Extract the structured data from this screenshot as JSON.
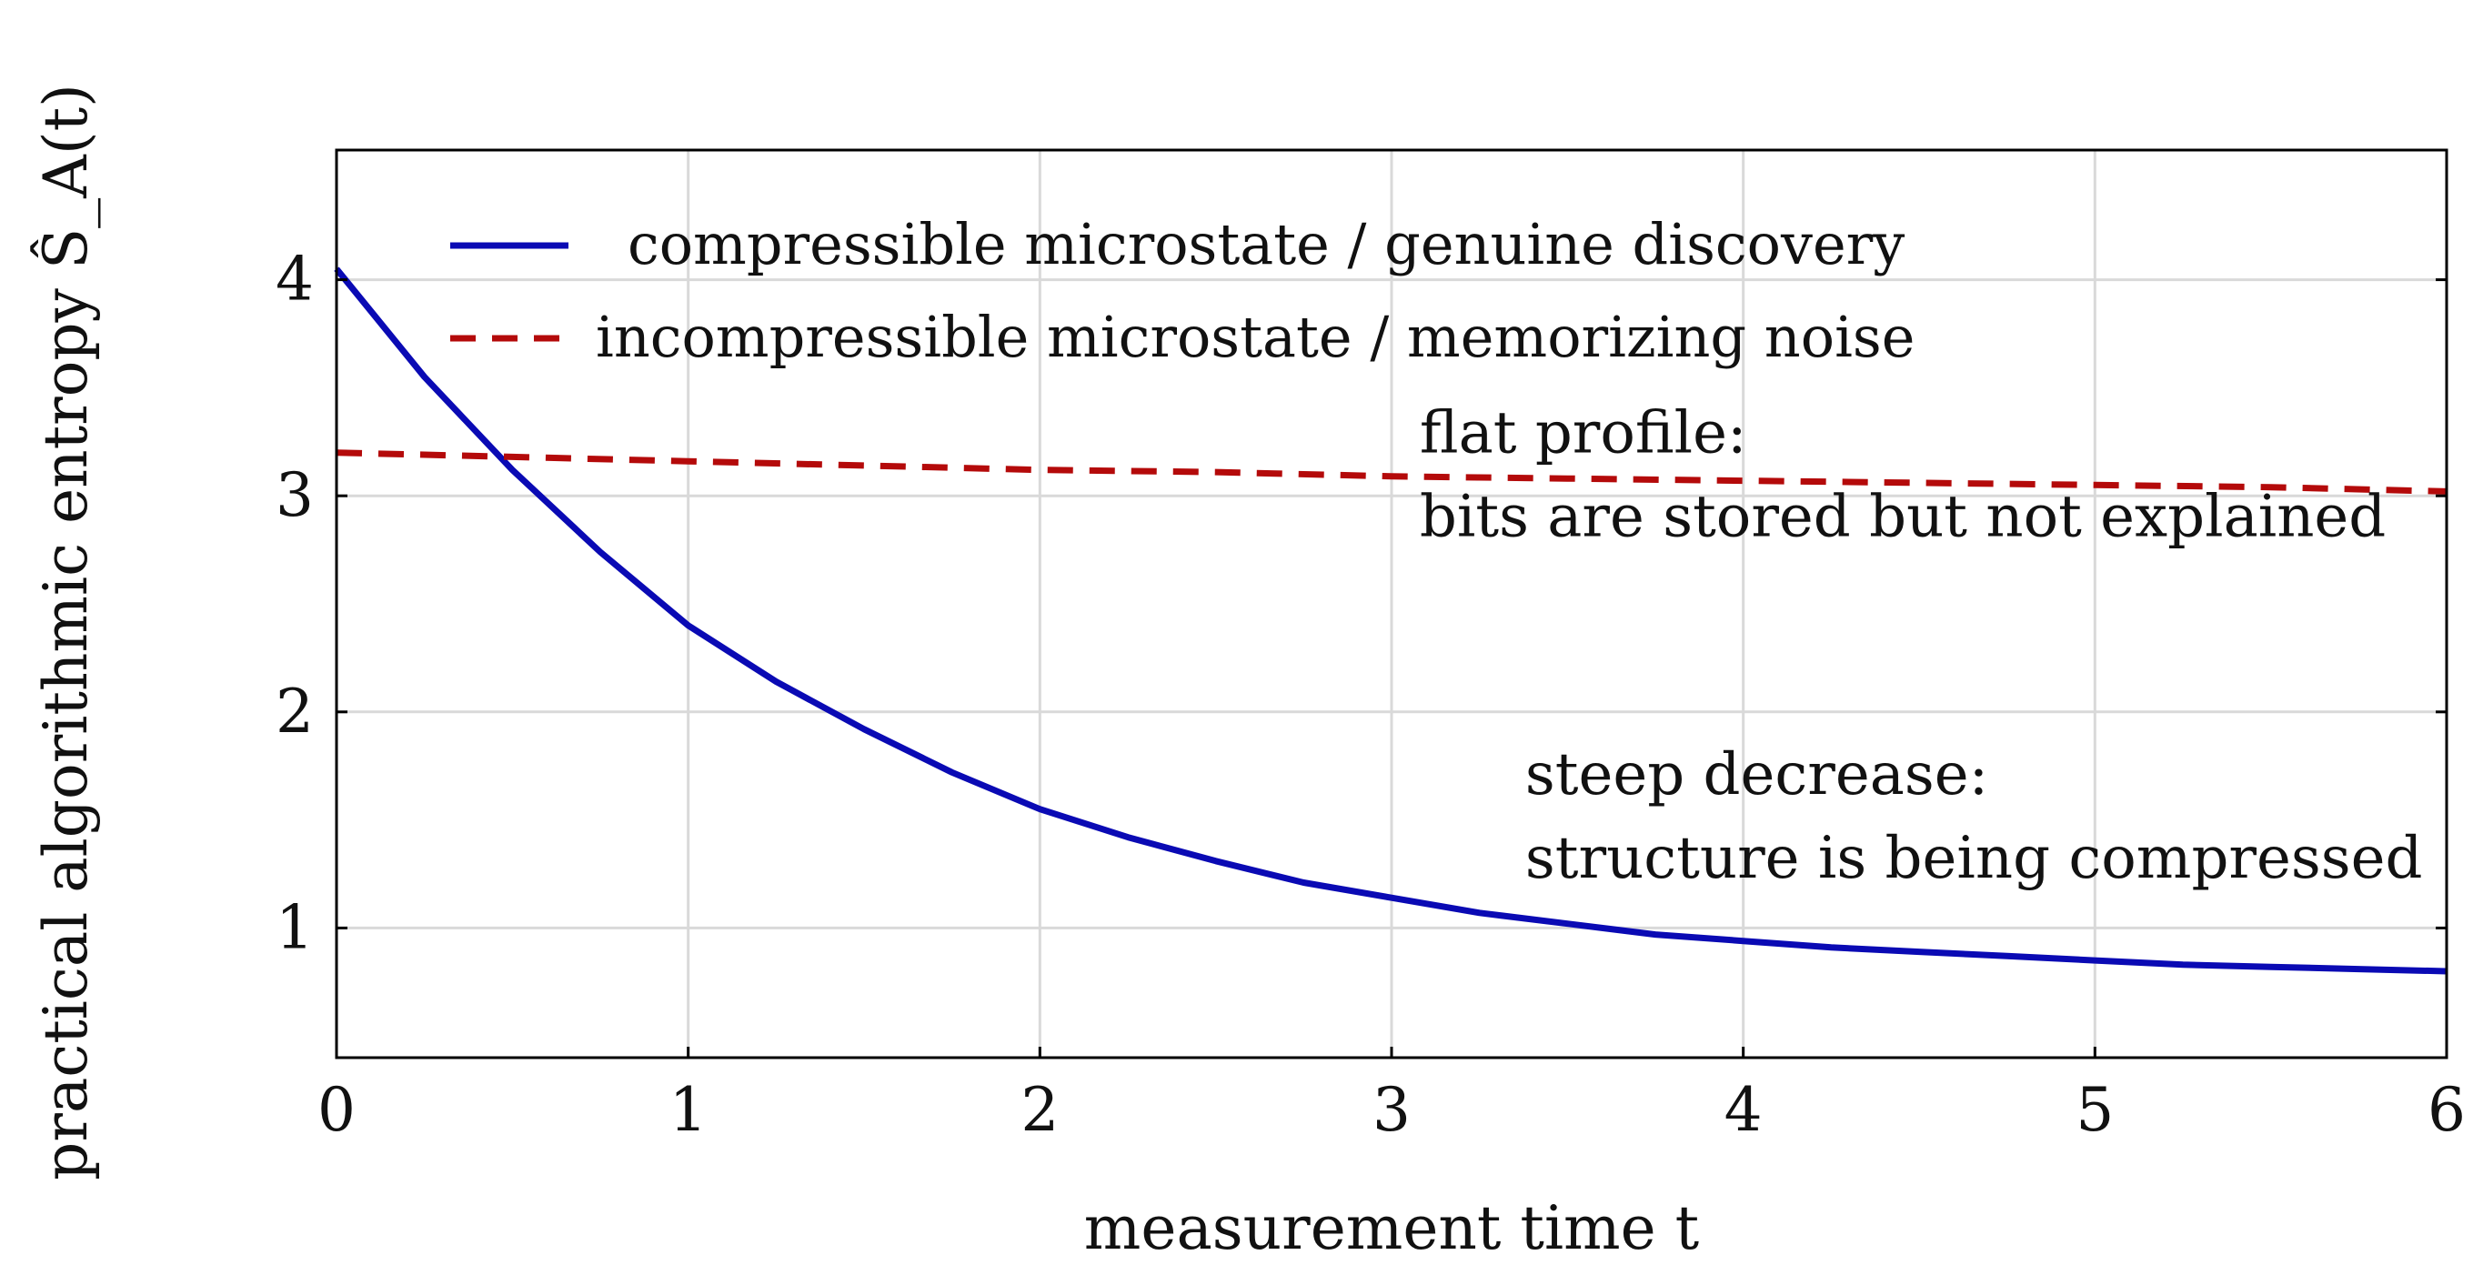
{
  "chart_data": {
    "type": "line",
    "xlabel": "measurement time t",
    "ylabel": "practical algorithmic entropy Ŝ_A(t)",
    "xlim": [
      0,
      6
    ],
    "ylim": [
      0.4,
      4.6
    ],
    "x_ticks": [
      "0",
      "1",
      "2",
      "3",
      "4",
      "5",
      "6"
    ],
    "y_ticks": [
      "1",
      "2",
      "3",
      "4"
    ],
    "grid": true,
    "legend_position": "top-left",
    "series": [
      {
        "name": "compressible microstate / genuine discovery",
        "style": "solid",
        "color": "#0a0ab4",
        "x": [
          0,
          0.25,
          0.5,
          0.75,
          1.0,
          1.25,
          1.5,
          1.75,
          2.0,
          2.25,
          2.5,
          2.75,
          3.0,
          3.25,
          3.5,
          3.75,
          4.0,
          4.25,
          4.5,
          4.75,
          5.0,
          5.25,
          5.5,
          5.75,
          6.0
        ],
        "y": [
          4.05,
          3.55,
          3.12,
          2.74,
          2.4,
          2.14,
          1.92,
          1.72,
          1.55,
          1.42,
          1.31,
          1.21,
          1.14,
          1.07,
          1.02,
          0.97,
          0.94,
          0.91,
          0.89,
          0.87,
          0.85,
          0.83,
          0.82,
          0.81,
          0.8
        ]
      },
      {
        "name": "incompressible microstate / memorizing noise",
        "style": "dashed",
        "color": "#b40a0a",
        "x": [
          0,
          0.5,
          1.0,
          1.5,
          2.0,
          2.5,
          3.0,
          3.5,
          4.0,
          4.5,
          5.0,
          5.5,
          6.0
        ],
        "y": [
          3.2,
          3.18,
          3.16,
          3.14,
          3.12,
          3.11,
          3.09,
          3.08,
          3.07,
          3.06,
          3.05,
          3.04,
          3.02
        ]
      }
    ],
    "annotations": [
      {
        "lines": [
          "flat profile:",
          "bits are stored but not explained"
        ],
        "x": 3.08,
        "y": 3.2
      },
      {
        "lines": [
          "steep decrease:",
          "structure is being compressed"
        ],
        "x": 3.38,
        "y": 1.62
      }
    ]
  }
}
